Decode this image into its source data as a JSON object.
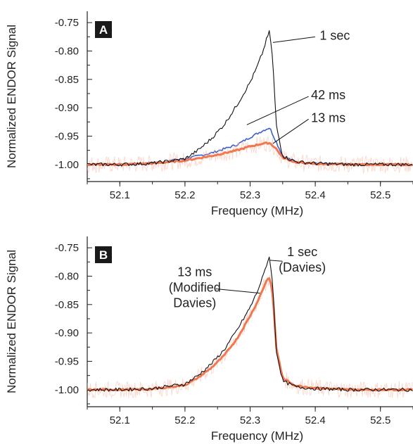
{
  "colors": {
    "black": "#111111",
    "blue": "#3a5fc8",
    "orange": "#f07850",
    "orange_noise": "#f6b39c"
  },
  "chart_data": [
    {
      "type": "line",
      "panel": "A",
      "xlabel": "Frequency (MHz)",
      "ylabel": "Normalized ENDOR Signal",
      "xlim": [
        52.05,
        52.55
      ],
      "ylim": [
        -1.03,
        -0.73
      ],
      "x_ticks": [
        52.1,
        52.2,
        52.3,
        52.4,
        52.5
      ],
      "x_tick_labels": [
        "52.1",
        "52.2",
        "52.3",
        "52.4",
        "52.5"
      ],
      "y_ticks": [
        -0.75,
        -0.8,
        -0.85,
        -0.9,
        -0.95,
        -1.0
      ],
      "y_tick_labels": [
        "-0.75",
        "-0.80",
        "-0.85",
        "-0.90",
        "-0.95",
        "-1.00"
      ],
      "grid": false,
      "series": [
        {
          "name": "1 sec",
          "color": "#111111",
          "x": [
            52.05,
            52.1,
            52.15,
            52.2,
            52.22,
            52.24,
            52.26,
            52.28,
            52.3,
            52.31,
            52.32,
            52.325,
            52.33,
            52.335,
            52.34,
            52.35,
            52.37,
            52.4,
            52.45,
            52.5,
            52.55
          ],
          "y": [
            -1.0,
            -1.0,
            -0.998,
            -0.99,
            -0.975,
            -0.955,
            -0.93,
            -0.895,
            -0.855,
            -0.83,
            -0.8,
            -0.78,
            -0.765,
            -0.82,
            -0.93,
            -0.985,
            -0.995,
            -0.998,
            -1.0,
            -1.0,
            -1.0
          ]
        },
        {
          "name": "42 ms",
          "color": "#3a5fc8",
          "x": [
            52.05,
            52.1,
            52.15,
            52.2,
            52.24,
            52.28,
            52.3,
            52.32,
            52.33,
            52.34,
            52.35,
            52.37,
            52.4,
            52.45,
            52.5,
            52.55
          ],
          "y": [
            -1.0,
            -1.0,
            -0.997,
            -0.99,
            -0.98,
            -0.965,
            -0.952,
            -0.94,
            -0.935,
            -0.96,
            -0.985,
            -0.995,
            -0.998,
            -1.0,
            -1.0,
            -1.0
          ]
        },
        {
          "name": "13 ms",
          "color": "#f07850",
          "x": [
            52.05,
            52.1,
            52.15,
            52.2,
            52.24,
            52.28,
            52.3,
            52.32,
            52.33,
            52.34,
            52.35,
            52.37,
            52.4,
            52.45,
            52.5,
            52.55
          ],
          "y": [
            -1.0,
            -1.0,
            -0.998,
            -0.993,
            -0.985,
            -0.975,
            -0.968,
            -0.963,
            -0.962,
            -0.972,
            -0.988,
            -0.996,
            -0.999,
            -1.0,
            -1.0,
            -1.0
          ]
        }
      ],
      "annotations": [
        {
          "lines": [
            "1 sec"
          ],
          "text_x": 52.43,
          "text_y": -0.78,
          "target_x": 52.335,
          "target_y": -0.785
        },
        {
          "lines": [
            "42 ms"
          ],
          "text_x": 52.42,
          "text_y": -0.885,
          "target_x": 52.295,
          "target_y": -0.93
        },
        {
          "lines": [
            "13 ms"
          ],
          "text_x": 52.42,
          "text_y": -0.925,
          "target_x": 52.335,
          "target_y": -0.963
        }
      ]
    },
    {
      "type": "line",
      "panel": "B",
      "xlabel": "Frequency (MHz)",
      "ylabel": "Normalized ENDOR Signal",
      "xlim": [
        52.05,
        52.55
      ],
      "ylim": [
        -1.03,
        -0.73
      ],
      "x_ticks": [
        52.1,
        52.2,
        52.3,
        52.4,
        52.5
      ],
      "x_tick_labels": [
        "52.1",
        "52.2",
        "52.3",
        "52.4",
        "52.5"
      ],
      "y_ticks": [
        -0.75,
        -0.8,
        -0.85,
        -0.9,
        -0.95,
        -1.0
      ],
      "y_tick_labels": [
        "-0.75",
        "-0.80",
        "-0.85",
        "-0.90",
        "-0.95",
        "-1.00"
      ],
      "grid": false,
      "series": [
        {
          "name": "1 sec (Davies)",
          "color": "#111111",
          "x": [
            52.05,
            52.1,
            52.15,
            52.2,
            52.22,
            52.24,
            52.26,
            52.28,
            52.3,
            52.31,
            52.32,
            52.325,
            52.33,
            52.335,
            52.34,
            52.35,
            52.37,
            52.4,
            52.45,
            52.5,
            52.55
          ],
          "y": [
            -1.0,
            -1.0,
            -0.998,
            -0.99,
            -0.975,
            -0.955,
            -0.93,
            -0.895,
            -0.855,
            -0.83,
            -0.8,
            -0.78,
            -0.765,
            -0.82,
            -0.93,
            -0.985,
            -0.995,
            -0.998,
            -1.0,
            -1.0,
            -1.0
          ]
        },
        {
          "name": "13 ms (Modified Davies)",
          "color": "#f07850",
          "x": [
            52.05,
            52.1,
            52.15,
            52.2,
            52.22,
            52.24,
            52.26,
            52.28,
            52.3,
            52.31,
            52.32,
            52.325,
            52.33,
            52.335,
            52.34,
            52.35,
            52.37,
            52.4,
            52.45,
            52.5,
            52.55
          ],
          "y": [
            -1.0,
            -1.0,
            -0.999,
            -0.992,
            -0.979,
            -0.962,
            -0.94,
            -0.91,
            -0.87,
            -0.848,
            -0.822,
            -0.808,
            -0.802,
            -0.835,
            -0.925,
            -0.98,
            -0.993,
            -0.997,
            -1.0,
            -1.0,
            -1.0
          ]
        }
      ],
      "annotations": [
        {
          "lines": [
            "1 sec",
            "(Davies)"
          ],
          "text_x": 52.38,
          "text_y": -0.765,
          "target_x": 52.33,
          "target_y": -0.772
        },
        {
          "lines": [
            "13 ms",
            "(Modified",
            "Davies)"
          ],
          "text_x": 52.215,
          "text_y": -0.8,
          "target_x": 52.315,
          "target_y": -0.83
        }
      ]
    }
  ]
}
